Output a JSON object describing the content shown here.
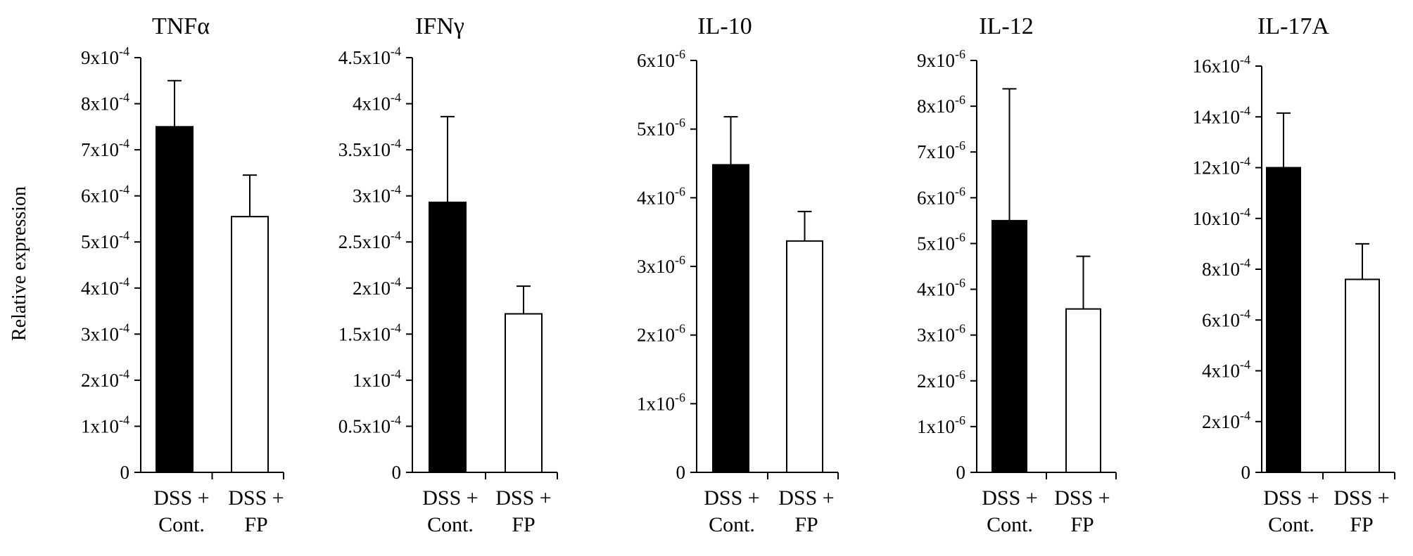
{
  "ylabel": "Relative expression",
  "colors": {
    "filled": "#000000",
    "open": "#ffffff",
    "stroke": "#000000"
  },
  "chart_data": [
    {
      "type": "bar",
      "title": "TNFα",
      "categories": [
        [
          "DSS +",
          "Cont."
        ],
        [
          "DSS +",
          "FP"
        ]
      ],
      "values": [
        7.5,
        5.55
      ],
      "errors": [
        1.0,
        0.9
      ],
      "ylim": [
        0,
        9
      ],
      "yticks": [
        {
          "v": 0,
          "base": "0",
          "exp": ""
        },
        {
          "v": 1,
          "base": "1x10",
          "exp": "-4"
        },
        {
          "v": 2,
          "base": "2x10",
          "exp": "-4"
        },
        {
          "v": 3,
          "base": "3x10",
          "exp": "-4"
        },
        {
          "v": 4,
          "base": "4x10",
          "exp": "-4"
        },
        {
          "v": 5,
          "base": "5x10",
          "exp": "-4"
        },
        {
          "v": 6,
          "base": "6x10",
          "exp": "-4"
        },
        {
          "v": 7,
          "base": "7x10",
          "exp": "-4"
        },
        {
          "v": 8,
          "base": "8x10",
          "exp": "-4"
        },
        {
          "v": 9,
          "base": "9x10",
          "exp": "-4"
        }
      ],
      "unit_exponent": -4,
      "bar_colors": [
        "#000000",
        "#ffffff"
      ]
    },
    {
      "type": "bar",
      "title": "IFNγ",
      "categories": [
        [
          "DSS +",
          "Cont."
        ],
        [
          "DSS +",
          "FP"
        ]
      ],
      "values": [
        2.93,
        1.72
      ],
      "errors": [
        0.93,
        0.3
      ],
      "ylim": [
        0,
        4.5
      ],
      "yticks": [
        {
          "v": 0,
          "base": "0",
          "exp": ""
        },
        {
          "v": 0.5,
          "base": "0.5x10",
          "exp": "-4"
        },
        {
          "v": 1,
          "base": "1x10",
          "exp": "-4"
        },
        {
          "v": 1.5,
          "base": "1.5x10",
          "exp": "-4"
        },
        {
          "v": 2,
          "base": "2x10",
          "exp": "-4"
        },
        {
          "v": 2.5,
          "base": "2.5x10",
          "exp": "-4"
        },
        {
          "v": 3,
          "base": "3x10",
          "exp": "-4"
        },
        {
          "v": 3.5,
          "base": "3.5x10",
          "exp": "-4"
        },
        {
          "v": 4,
          "base": "4x10",
          "exp": "-4"
        },
        {
          "v": 4.5,
          "base": "4.5x10",
          "exp": "-4"
        }
      ],
      "unit_exponent": -4,
      "bar_colors": [
        "#000000",
        "#ffffff"
      ]
    },
    {
      "type": "bar",
      "title": "IL-10",
      "categories": [
        [
          "DSS +",
          "Cont."
        ],
        [
          "DSS +",
          "FP"
        ]
      ],
      "values": [
        4.48,
        3.37
      ],
      "errors": [
        0.7,
        0.43
      ],
      "ylim": [
        0,
        6
      ],
      "yticks": [
        {
          "v": 0,
          "base": "0",
          "exp": ""
        },
        {
          "v": 1,
          "base": "1x10",
          "exp": "-6"
        },
        {
          "v": 2,
          "base": "2x10",
          "exp": "-6"
        },
        {
          "v": 3,
          "base": "3x10",
          "exp": "-6"
        },
        {
          "v": 4,
          "base": "4x10",
          "exp": "-6"
        },
        {
          "v": 5,
          "base": "5x10",
          "exp": "-6"
        },
        {
          "v": 6,
          "base": "6x10",
          "exp": "-6"
        }
      ],
      "unit_exponent": -6,
      "bar_colors": [
        "#000000",
        "#ffffff"
      ]
    },
    {
      "type": "bar",
      "title": "IL-12",
      "categories": [
        [
          "DSS +",
          "Cont."
        ],
        [
          "DSS +",
          "FP"
        ]
      ],
      "values": [
        5.5,
        3.57
      ],
      "errors": [
        2.88,
        1.15
      ],
      "ylim": [
        0,
        9
      ],
      "yticks": [
        {
          "v": 0,
          "base": "0",
          "exp": ""
        },
        {
          "v": 1,
          "base": "1x10",
          "exp": "-6"
        },
        {
          "v": 2,
          "base": "2x10",
          "exp": "-6"
        },
        {
          "v": 3,
          "base": "3x10",
          "exp": "-6"
        },
        {
          "v": 4,
          "base": "4x10",
          "exp": "-6"
        },
        {
          "v": 5,
          "base": "5x10",
          "exp": "-6"
        },
        {
          "v": 6,
          "base": "6x10",
          "exp": "-6"
        },
        {
          "v": 7,
          "base": "7x10",
          "exp": "-6"
        },
        {
          "v": 8,
          "base": "8x10",
          "exp": "-6"
        },
        {
          "v": 9,
          "base": "9x10",
          "exp": "-6"
        }
      ],
      "unit_exponent": -6,
      "bar_colors": [
        "#000000",
        "#ffffff"
      ]
    },
    {
      "type": "bar",
      "title": "IL-17A",
      "categories": [
        [
          "DSS +",
          "Cont."
        ],
        [
          "DSS +",
          "FP"
        ]
      ],
      "values": [
        12.0,
        7.6
      ],
      "errors": [
        2.15,
        1.4
      ],
      "ylim": [
        0,
        16
      ],
      "yticks": [
        {
          "v": 0,
          "base": "0",
          "exp": ""
        },
        {
          "v": 2,
          "base": "2x10",
          "exp": "-4"
        },
        {
          "v": 4,
          "base": "4x10",
          "exp": "-4"
        },
        {
          "v": 6,
          "base": "6x10",
          "exp": "-4"
        },
        {
          "v": 8,
          "base": "8x10",
          "exp": "-4"
        },
        {
          "v": 10,
          "base": "10x10",
          "exp": "-4"
        },
        {
          "v": 12,
          "base": "12x10",
          "exp": "-4"
        },
        {
          "v": 14,
          "base": "14x10",
          "exp": "-4"
        },
        {
          "v": 16,
          "base": "16x10",
          "exp": "-4"
        }
      ],
      "unit_exponent": -4,
      "bar_colors": [
        "#000000",
        "#ffffff"
      ]
    }
  ]
}
